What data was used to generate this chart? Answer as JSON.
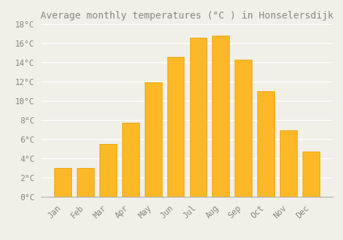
{
  "title": "Average monthly temperatures (°C ) in Honselersdijk",
  "months": [
    "Jan",
    "Feb",
    "Mar",
    "Apr",
    "May",
    "Jun",
    "Jul",
    "Aug",
    "Sep",
    "Oct",
    "Nov",
    "Dec"
  ],
  "values": [
    3.0,
    3.0,
    5.5,
    7.7,
    11.9,
    14.6,
    16.6,
    16.8,
    14.3,
    11.0,
    6.9,
    4.7
  ],
  "bar_color": "#FDB827",
  "bar_edge_color": "#E8A000",
  "background_color": "#F0EFE8",
  "grid_color": "#FFFFFF",
  "text_color": "#888880",
  "ylim": [
    0,
    18
  ],
  "ytick_step": 2,
  "title_fontsize": 10,
  "tick_fontsize": 8.5
}
